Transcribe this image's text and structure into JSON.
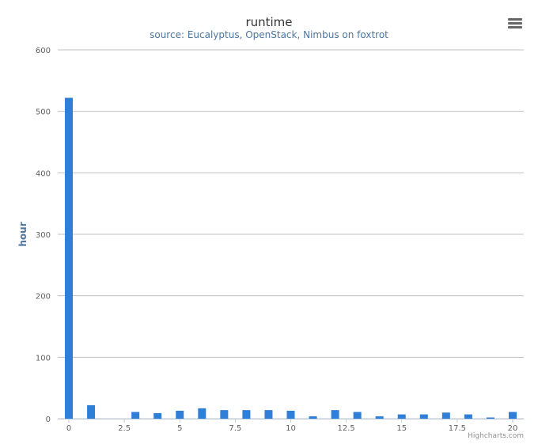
{
  "chart_data": {
    "type": "bar",
    "title": "runtime",
    "subtitle": "source: Eucalyptus, OpenStack, Nimbus on foxtrot",
    "ylabel": "hour",
    "xlabel": "",
    "x": [
      0,
      1,
      2,
      3,
      4,
      5,
      6,
      7,
      8,
      9,
      10,
      11,
      12,
      13,
      14,
      15,
      16,
      17,
      18,
      19,
      20
    ],
    "values": [
      522,
      22,
      0,
      11,
      9,
      13,
      17,
      14,
      14,
      14,
      13,
      4,
      14,
      11,
      4,
      7,
      7,
      10,
      7,
      2,
      11
    ],
    "xlim": [
      -0.5,
      20.5
    ],
    "ylim": [
      0,
      600
    ],
    "x_ticks": [
      "0",
      "2.5",
      "5",
      "7.5",
      "10",
      "12.5",
      "15",
      "17.5",
      "20"
    ],
    "y_ticks": [
      "0",
      "100",
      "200",
      "300",
      "400",
      "500",
      "600"
    ],
    "bar_color": "#2f7ed8",
    "grid": true,
    "legend": "none"
  },
  "credits": "Highcharts.com",
  "menu_icon": "hamburger-menu-icon"
}
